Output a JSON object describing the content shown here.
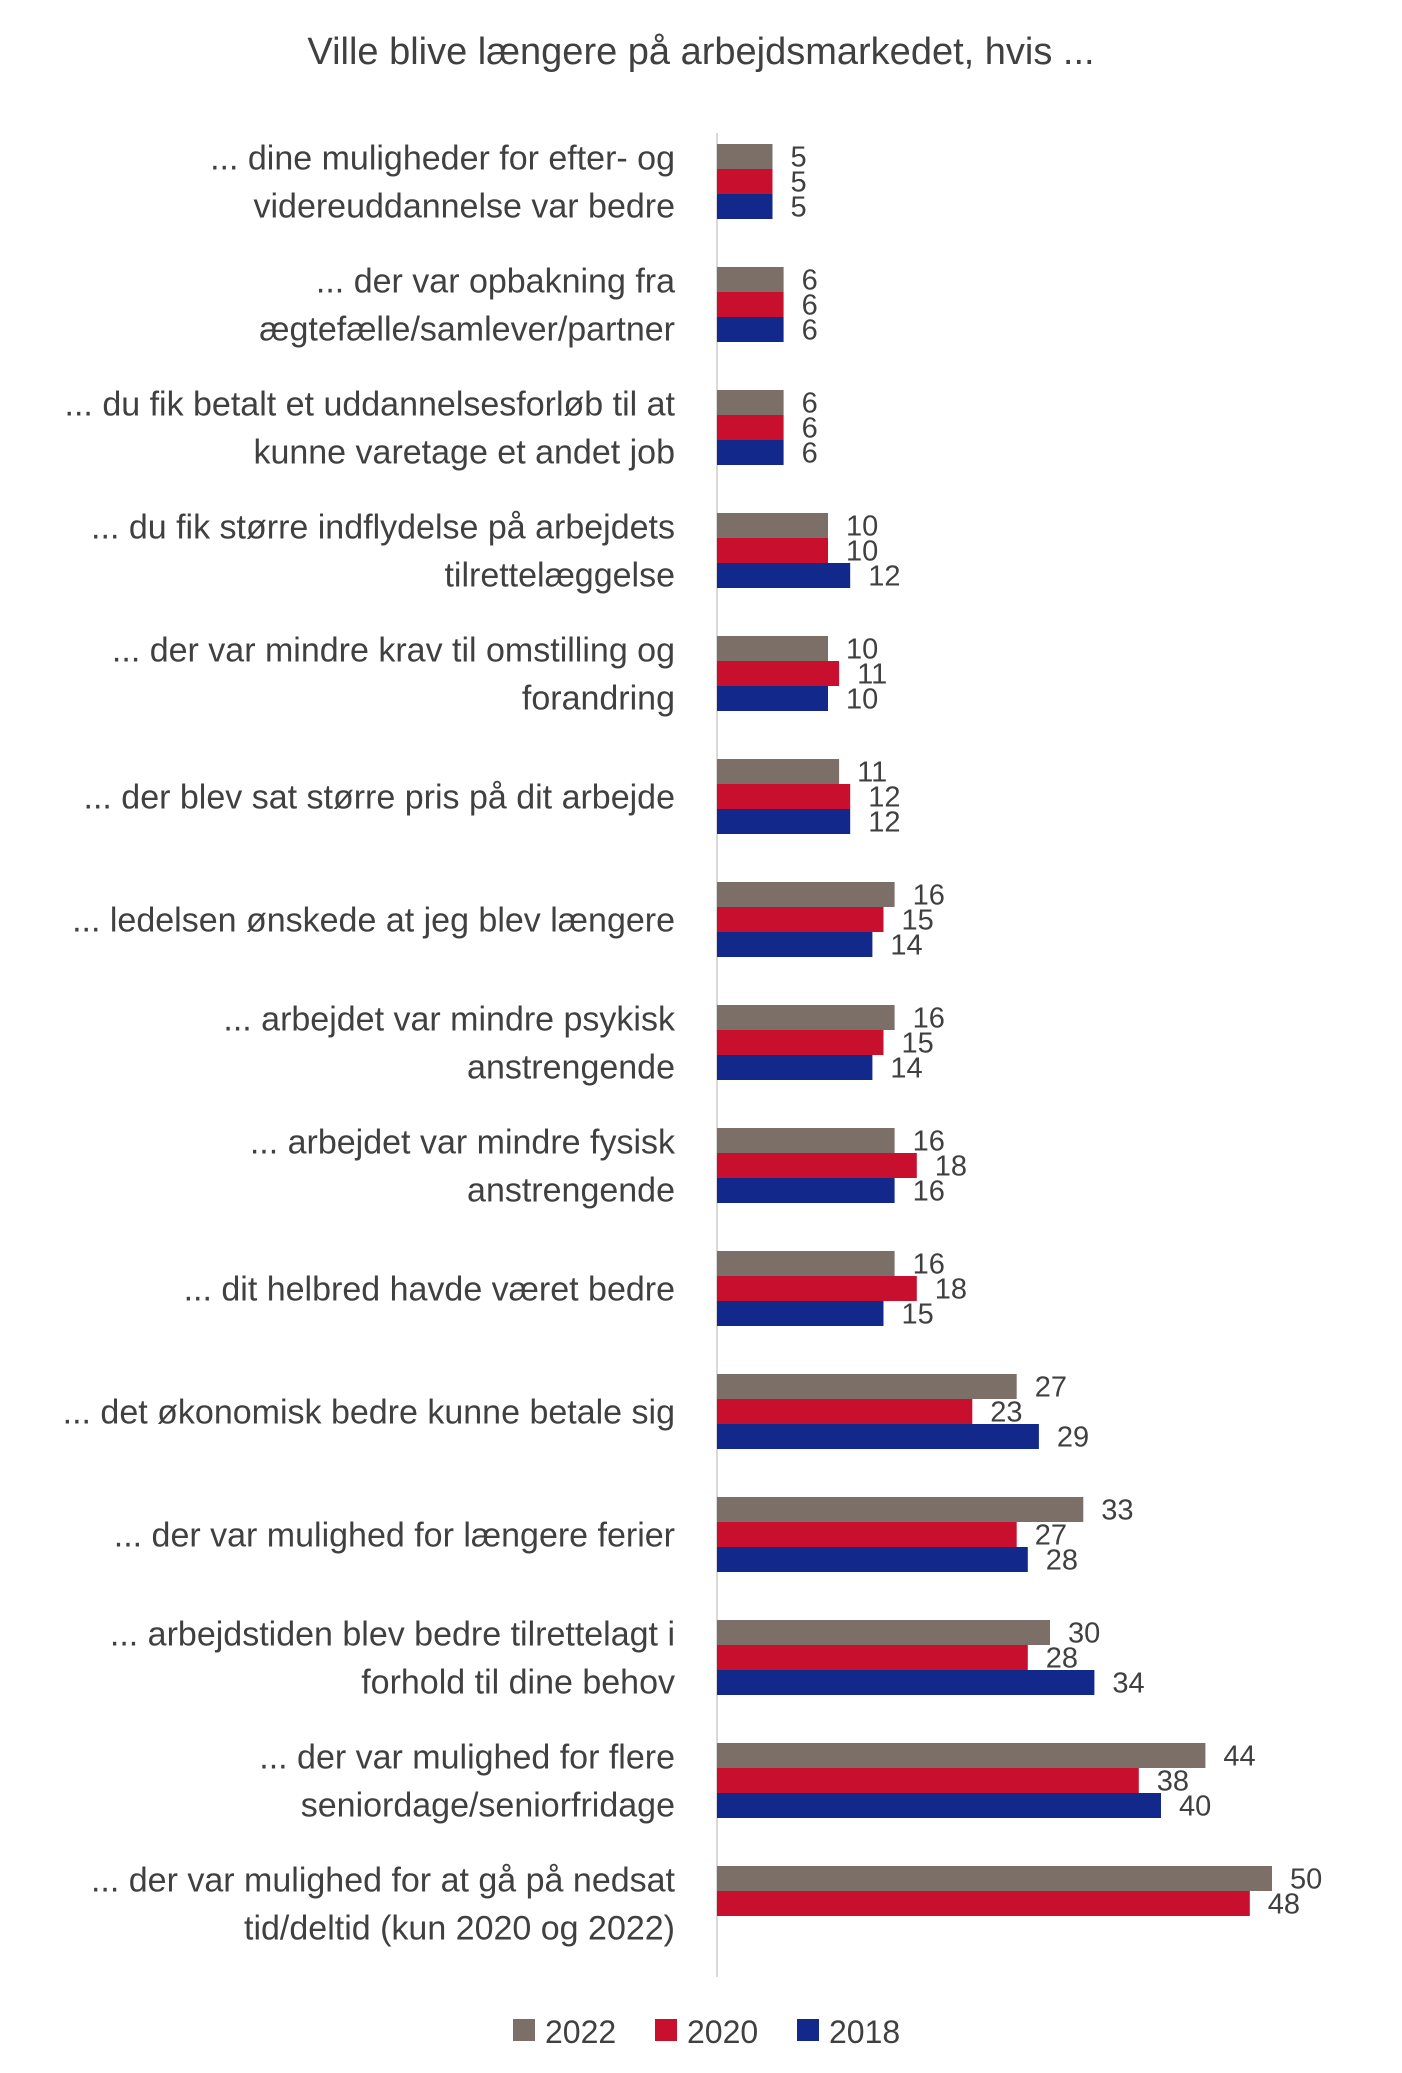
{
  "chart_data": {
    "type": "bar",
    "orientation": "horizontal",
    "title": "Ville blive længere på arbejdsmarkedet, hvis ...",
    "xlabel": "",
    "ylabel": "",
    "xlim": [
      0,
      60
    ],
    "grid": false,
    "legend_position": "bottom",
    "categories": [
      [
        "... dine muligheder for efter- og",
        "videreuddannelse var bedre"
      ],
      [
        "... der var opbakning fra",
        "ægtefælle/samlever/partner"
      ],
      [
        "... du fik betalt et uddannelsesforløb til at",
        "kunne varetage et andet job"
      ],
      [
        "... du fik større indflydelse på arbejdets",
        "tilrettelæggelse"
      ],
      [
        "... der var mindre krav til omstilling og",
        "forandring"
      ],
      [
        "... der blev sat større pris på dit arbejde"
      ],
      [
        "... ledelsen ønskede at jeg blev længere"
      ],
      [
        "... arbejdet var mindre psykisk",
        "anstrengende"
      ],
      [
        "... arbejdet var mindre fysisk",
        "anstrengende"
      ],
      [
        "... dit helbred havde været bedre"
      ],
      [
        "... det økonomisk bedre kunne betale sig"
      ],
      [
        "... der var mulighed for længere ferier"
      ],
      [
        "... arbejdstiden blev bedre tilrettelagt i",
        "forhold til dine behov"
      ],
      [
        "... der var mulighed for flere",
        "seniordage/seniorfridage"
      ],
      [
        "... der var mulighed for at gå på nedsat",
        "tid/deltid (kun 2020 og 2022)"
      ]
    ],
    "series": [
      {
        "name": "2022",
        "color": "#7b6f67",
        "values": [
          5,
          6,
          6,
          10,
          10,
          11,
          16,
          16,
          16,
          16,
          27,
          33,
          30,
          44,
          50
        ]
      },
      {
        "name": "2020",
        "color": "#c8102e",
        "values": [
          5,
          6,
          6,
          10,
          11,
          12,
          15,
          15,
          18,
          18,
          23,
          27,
          28,
          38,
          48
        ]
      },
      {
        "name": "2018",
        "color": "#12288a",
        "values": [
          5,
          6,
          6,
          12,
          10,
          12,
          14,
          14,
          16,
          15,
          29,
          28,
          34,
          40,
          null
        ]
      }
    ]
  }
}
